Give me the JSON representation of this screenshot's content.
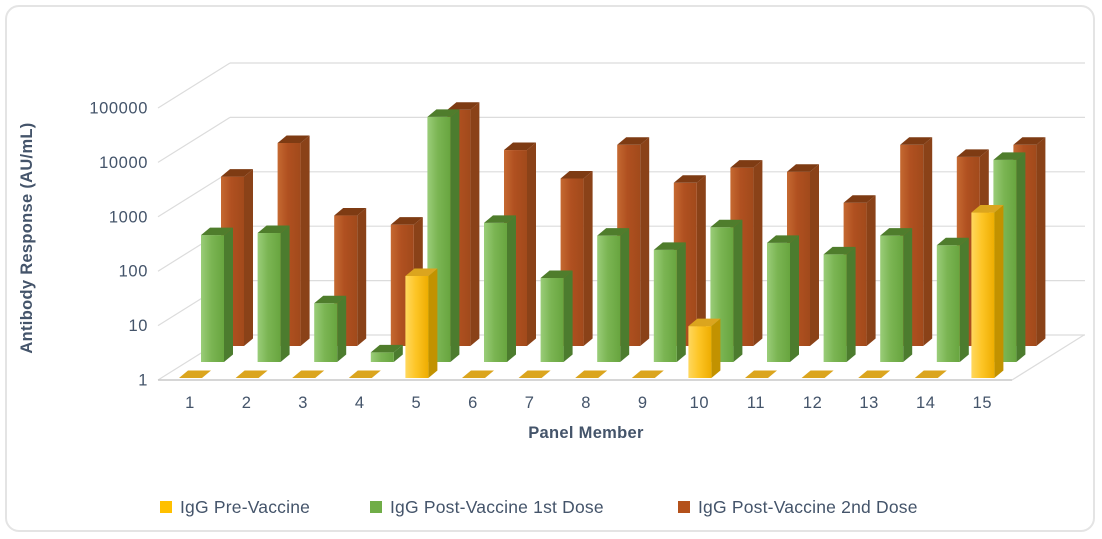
{
  "chart_data": {
    "type": "bar",
    "subtype": "3d-clustered-column",
    "title": "",
    "xlabel": "Panel Member",
    "ylabel": "Antibody  Response (AU/mL)",
    "y_scale": "log",
    "ylim": [
      1,
      100000
    ],
    "y_ticks": [
      "1",
      "10",
      "100",
      "1000",
      "10000",
      "100000"
    ],
    "grid": true,
    "legend_position": "bottom",
    "categories": [
      "1",
      "2",
      "3",
      "4",
      "5",
      "6",
      "7",
      "8",
      "9",
      "10",
      "11",
      "12",
      "13",
      "14",
      "15"
    ],
    "series": [
      {
        "name": "IgG Pre-Vaccine",
        "color": "#FFC000",
        "values": [
          1,
          1,
          1,
          1,
          75,
          1,
          1,
          1,
          1,
          9,
          1,
          1,
          1,
          1,
          1100
        ]
      },
      {
        "name": "IgG Post-Vaccine 1st Dose",
        "color": "#70AD47",
        "values": [
          215,
          235,
          12,
          1.5,
          32000,
          360,
          35,
          210,
          115,
          300,
          155,
          95,
          210,
          140,
          5200
        ]
      },
      {
        "name": "IgG Post-Vaccine 2nd Dose",
        "color": "#B4511B",
        "values": [
          1300,
          5400,
          250,
          170,
          22000,
          4000,
          1200,
          5000,
          1000,
          1900,
          1600,
          430,
          5000,
          3000,
          5000
        ]
      }
    ],
    "colors": {
      "text": "#44546A",
      "gridline": "#DCDCDC",
      "axis_line": "#C8C8C8"
    }
  }
}
